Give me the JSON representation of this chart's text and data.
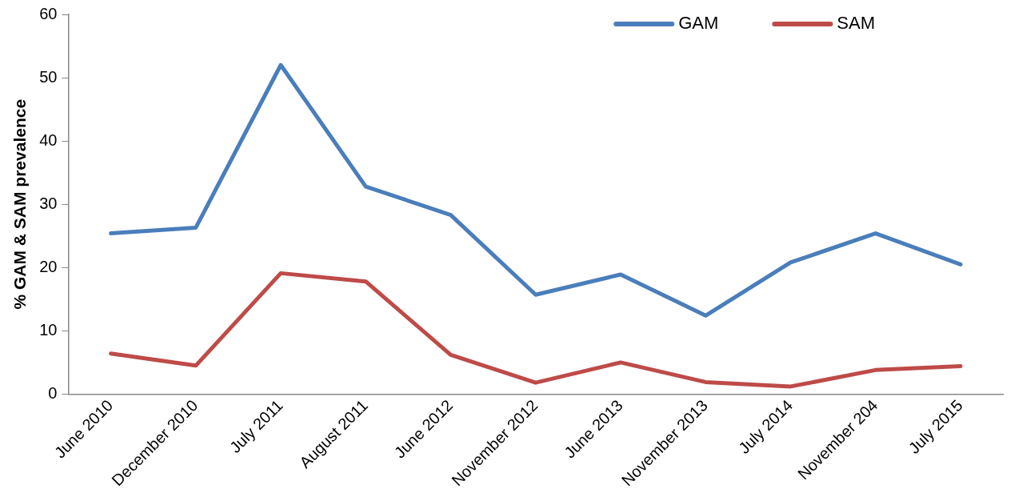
{
  "chart_data": {
    "type": "line",
    "ylabel": "% GAM & SAM prevalence",
    "categories": [
      "June 2010",
      "December 2010",
      "July 2011",
      "August 2011",
      "June 2012",
      "November 2012",
      "June 2013",
      "November 2013",
      "July 2014",
      "November 204",
      "July 2015"
    ],
    "series": [
      {
        "name": "GAM",
        "color": "#4a7ebb",
        "values": [
          25.4,
          26.3,
          52,
          32.8,
          28.3,
          15.7,
          18.9,
          12.4,
          20.8,
          25.4,
          20.5
        ]
      },
      {
        "name": "SAM",
        "color": "#be4b48",
        "values": [
          6.4,
          4.5,
          19.1,
          17.8,
          6.2,
          1.8,
          5.0,
          1.9,
          1.2,
          3.8,
          4.4
        ]
      }
    ],
    "ylim": [
      0,
      60
    ],
    "yticks": [
      0,
      10,
      20,
      30,
      40,
      50,
      60
    ],
    "grid": false,
    "legend": "top right",
    "marker": "none",
    "line_style": "solid"
  }
}
